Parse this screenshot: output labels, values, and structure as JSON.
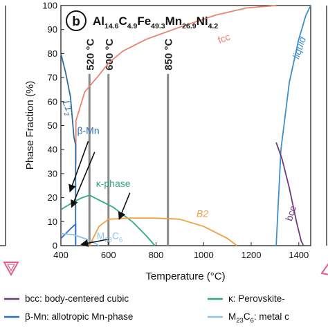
{
  "chart_data": {
    "type": "line",
    "panel_label": "b",
    "composition": {
      "elements": [
        {
          "el": "Al",
          "sub": "14.6"
        },
        {
          "el": "C",
          "sub": "4.9"
        },
        {
          "el": "Fe",
          "sub": "49.3"
        },
        {
          "el": "Mn",
          "sub": "26.9"
        },
        {
          "el": "Ni",
          "sub": "4.2"
        }
      ]
    },
    "xlabel": "Temperature (°C)",
    "ylabel": "Phase Fraction (%)",
    "xlim": [
      400,
      1450
    ],
    "ylim": [
      0,
      100
    ],
    "xticks": [
      400,
      600,
      800,
      1000,
      1200,
      1400
    ],
    "yticks": [
      0,
      10,
      20,
      30,
      40,
      50,
      60,
      70,
      80,
      90,
      100
    ],
    "grid": false,
    "colors": {
      "fcc": "#ec8272",
      "liquid": "#3b8fd0",
      "bcc": "#6e3a7e",
      "L12": "#2e6d9e",
      "beta_mn": "#2f6fc0",
      "kappa": "#2fab7c",
      "m23c6": "#8fc3e6",
      "B2": "#f0a040",
      "vline": "#888888",
      "arrow": "#111111"
    },
    "series": [
      {
        "name": "fcc",
        "x": [
          463,
          463,
          500,
          560,
          600,
          660,
          760,
          900,
          1050,
          1180,
          1305,
          1305
        ],
        "y": [
          34,
          52,
          64,
          71,
          76,
          81,
          86,
          91,
          96,
          99,
          100,
          100
        ]
      },
      {
        "name": "liquid",
        "x": [
          1305,
          1325,
          1360,
          1400,
          1430,
          1450
        ],
        "y": [
          0,
          40,
          68,
          86,
          96,
          100
        ]
      },
      {
        "name": "bcc",
        "x": [
          1305,
          1330,
          1360,
          1390,
          1410,
          1420
        ],
        "y": [
          43,
          36,
          24,
          10,
          2,
          0
        ]
      },
      {
        "name": "L12",
        "x": [
          400,
          420,
          440,
          455,
          462,
          462
        ],
        "y": [
          80,
          72,
          62,
          45,
          42,
          0
        ]
      },
      {
        "name": "β-Mn",
        "x": [
          400,
          440,
          462,
          462
        ],
        "y": [
          3,
          7,
          9,
          0
        ]
      },
      {
        "name": "κ-phase",
        "x": [
          400,
          450,
          490,
          520,
          560,
          620,
          700,
          760,
          795
        ],
        "y": [
          15,
          18,
          20,
          21,
          19,
          16,
          10,
          4,
          0
        ]
      },
      {
        "name": "M23C6",
        "x": [
          400,
          450,
          500,
          530,
          560
        ],
        "y": [
          5,
          4.6,
          3,
          1.8,
          0
        ]
      },
      {
        "name": "B2",
        "x": [
          520,
          540,
          560,
          600,
          700,
          800,
          900,
          1000,
          1100,
          1140
        ],
        "y": [
          0,
          4,
          8,
          11,
          11.5,
          11.5,
          11,
          8,
          3,
          0
        ]
      }
    ],
    "vlines": [
      {
        "x": 520,
        "label": "520 °C"
      },
      {
        "x": 600,
        "label": "600 °C"
      },
      {
        "x": 850,
        "label": "850 °C"
      }
    ],
    "annotations": [
      {
        "key": "fcc",
        "text": "fcc",
        "x": 1090,
        "y": 85,
        "rot": -20,
        "color": "fcc"
      },
      {
        "key": "liquid",
        "text": "liquid",
        "x": 1415,
        "y": 82,
        "rot": -72,
        "color": "liquid"
      },
      {
        "key": "bcc",
        "text": "bcc",
        "x": 1380,
        "y": 13,
        "rot": -72,
        "color": "bcc"
      },
      {
        "key": "L12",
        "text": "L1",
        "sub": "2",
        "x": 418,
        "y": 57,
        "rot": 68,
        "color": "L12"
      },
      {
        "key": "beta",
        "text": "β-Mn",
        "x": 515,
        "y": 46.5,
        "rot": 0,
        "color": "beta_mn"
      },
      {
        "key": "kappa",
        "text": "κ-phase",
        "x": 620,
        "y": 24.5,
        "rot": 0,
        "color": "kappa"
      },
      {
        "key": "m23",
        "text": "M",
        "sub": "23",
        "text2": "C",
        "sub2": "6",
        "x": 605,
        "y": 2.7,
        "rot": 0,
        "color": "m23c6"
      },
      {
        "key": "b2",
        "text": "B2",
        "x": 995,
        "y": 12,
        "rot": 0,
        "color": "B2"
      }
    ],
    "arrows": [
      {
        "from": [
          515,
          43.5
        ],
        "to": [
          438,
          22.5
        ]
      },
      {
        "from": [
          542,
          39
        ],
        "to": [
          445,
          16
        ]
      },
      {
        "from": [
          690,
          22
        ],
        "to": [
          645,
          11
        ]
      },
      {
        "from": [
          600,
          2.7
        ],
        "to": [
          485,
          0.5
        ]
      }
    ],
    "legend": [
      {
        "label": "bcc: body-centered cubic",
        "color": "bcc"
      },
      {
        "label": "κ: Perovskite-",
        "color": "kappa"
      },
      {
        "label": "β-Mn: allotropic Mn-phase",
        "color": "beta_mn"
      },
      {
        "label": "M",
        "sub": "23",
        "label2": "C",
        "sub2": "6",
        "label3": ": metal c",
        "color": "m23c6"
      }
    ]
  }
}
